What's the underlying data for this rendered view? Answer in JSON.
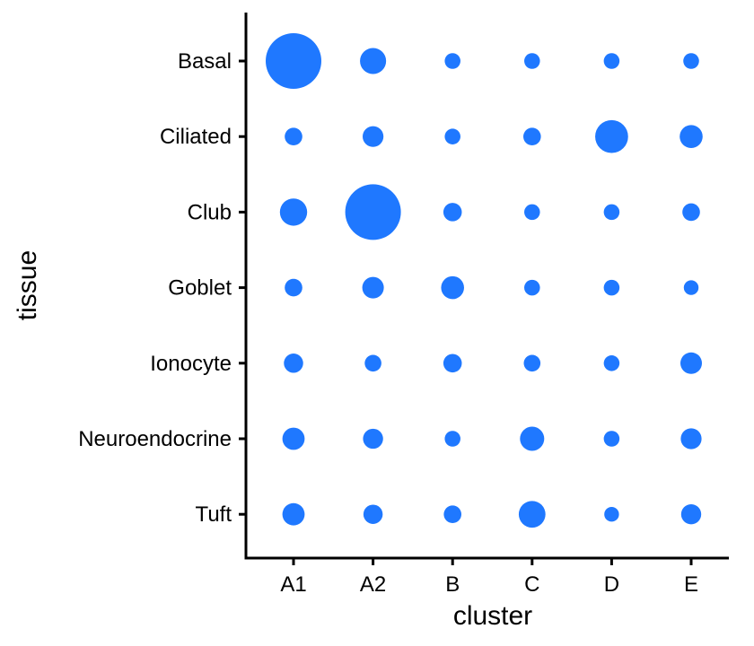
{
  "chart_data": {
    "type": "scatter",
    "subtype": "dot-plot",
    "xlabel": "cluster",
    "ylabel": "tissue",
    "x_categories": [
      "A1",
      "A2",
      "B",
      "C",
      "D",
      "E"
    ],
    "y_categories": [
      "Basal",
      "Ciliated",
      "Club",
      "Goblet",
      "Ionocyte",
      "Neuroendocrine",
      "Tuft"
    ],
    "size_metric": "relative",
    "size_matrix": [
      [
        1.0,
        0.22,
        0.08,
        0.08,
        0.08,
        0.08
      ],
      [
        0.1,
        0.14,
        0.08,
        0.1,
        0.35,
        0.17
      ],
      [
        0.24,
        1.0,
        0.11,
        0.08,
        0.08,
        0.1
      ],
      [
        0.1,
        0.15,
        0.17,
        0.08,
        0.08,
        0.07
      ],
      [
        0.12,
        0.09,
        0.11,
        0.09,
        0.08,
        0.15
      ],
      [
        0.16,
        0.13,
        0.08,
        0.19,
        0.08,
        0.14
      ],
      [
        0.16,
        0.12,
        0.1,
        0.23,
        0.07,
        0.13
      ]
    ],
    "point_color": "#1F78FF",
    "grid": false,
    "legend": "none"
  }
}
